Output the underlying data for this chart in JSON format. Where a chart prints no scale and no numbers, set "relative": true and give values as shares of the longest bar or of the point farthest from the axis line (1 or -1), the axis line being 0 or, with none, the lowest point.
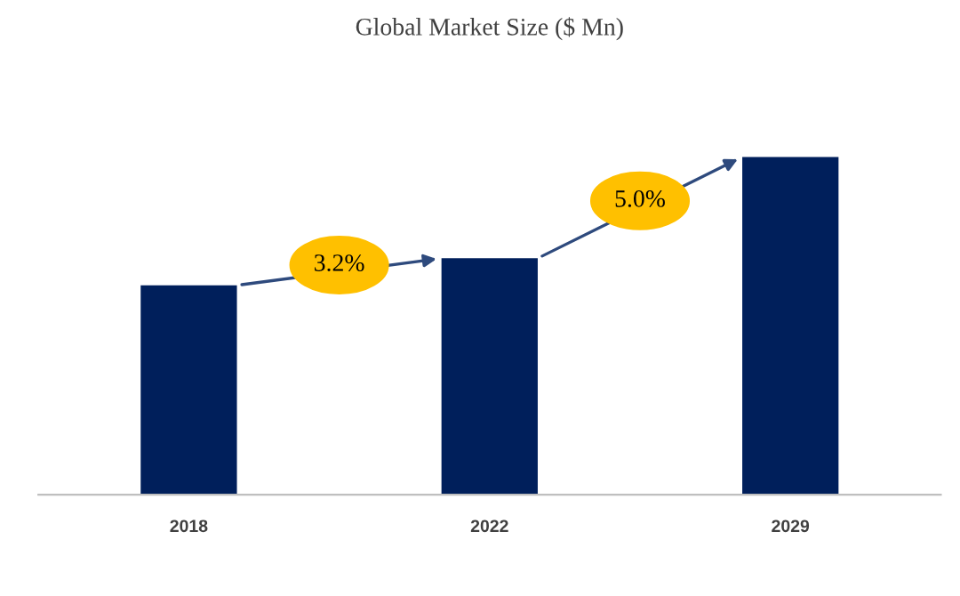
{
  "chart_data": {
    "type": "bar",
    "title": "Global Market Size ($ Mn)",
    "categories": [
      "2018",
      "2022",
      "2029"
    ],
    "values": [
      0.62,
      0.7,
      1
    ],
    "color": "#001f5b",
    "relative": true,
    "grid": false,
    "legend": false,
    "annotations": [
      "3.2%",
      "5.0%"
    ]
  }
}
